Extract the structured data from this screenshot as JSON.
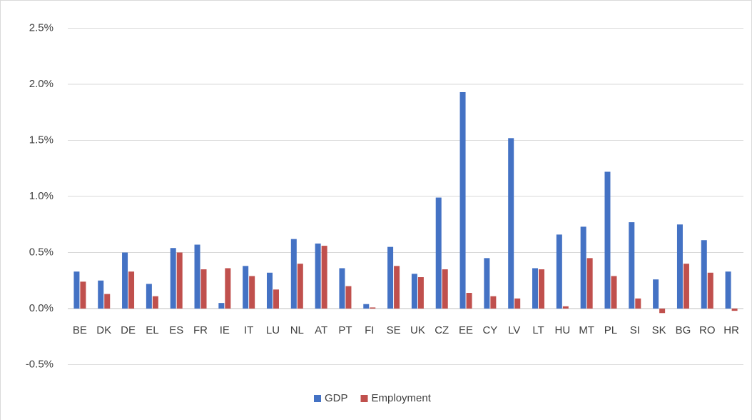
{
  "chart_data": {
    "type": "bar",
    "categories": [
      "BE",
      "DK",
      "DE",
      "EL",
      "ES",
      "FR",
      "IE",
      "IT",
      "LU",
      "NL",
      "AT",
      "PT",
      "FI",
      "SE",
      "UK",
      "CZ",
      "EE",
      "CY",
      "LV",
      "LT",
      "HU",
      "MT",
      "PL",
      "SI",
      "SK",
      "BG",
      "RO",
      "HR"
    ],
    "series": [
      {
        "name": "GDP",
        "color": "#4472c4",
        "values": [
          0.33,
          0.25,
          0.5,
          0.22,
          0.54,
          0.57,
          0.05,
          0.38,
          0.32,
          0.62,
          0.58,
          0.36,
          0.04,
          0.55,
          0.31,
          0.99,
          1.93,
          0.45,
          1.52,
          0.36,
          0.66,
          0.73,
          1.22,
          0.77,
          0.26,
          0.75,
          0.61,
          0.33
        ]
      },
      {
        "name": "Employment",
        "color": "#c0504d",
        "values": [
          0.24,
          0.13,
          0.33,
          0.11,
          0.5,
          0.35,
          0.36,
          0.29,
          0.17,
          0.4,
          0.56,
          0.2,
          0.01,
          0.38,
          0.28,
          0.35,
          0.14,
          0.11,
          0.09,
          0.35,
          0.02,
          0.45,
          0.29,
          0.09,
          -0.04,
          0.4,
          0.32,
          -0.02
        ]
      }
    ],
    "ylim": [
      -0.7,
      2.6
    ],
    "yticks": [
      {
        "value": -0.5,
        "label": "-0.5%"
      },
      {
        "value": 0.0,
        "label": "0.0%"
      },
      {
        "value": 0.5,
        "label": "0.5%"
      },
      {
        "value": 1.0,
        "label": "1.0%"
      },
      {
        "value": 1.5,
        "label": "1.5%"
      },
      {
        "value": 2.0,
        "label": "2.0%"
      },
      {
        "value": 2.5,
        "label": "2.5%"
      }
    ],
    "grid": true,
    "legend": "bottom"
  }
}
